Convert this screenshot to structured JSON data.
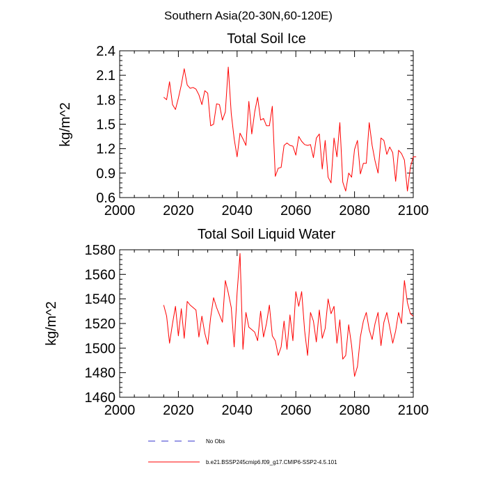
{
  "suptitle": "Southern Asia(20-30N,60-120E)",
  "chart_data": [
    {
      "type": "line",
      "title": "Total Soil Ice",
      "ylabel": "kg/m^2",
      "xlabel": "",
      "xlim": [
        2000,
        2100
      ],
      "ylim": [
        0.6,
        2.4
      ],
      "xticks": [
        2000,
        2020,
        2040,
        2060,
        2080,
        2100
      ],
      "xtick_labels": [
        "2000",
        "2020",
        "2040",
        "2060",
        "2080",
        "2100"
      ],
      "yticks": [
        0.6,
        0.9,
        1.2,
        1.5,
        1.8,
        2.1,
        2.4
      ],
      "ytick_labels": [
        "0.6",
        "0.9",
        "1.2",
        "1.5",
        "1.8",
        "2.1",
        "2.4"
      ],
      "series": [
        {
          "name": "b.e21.BSSP245cmip6.f09_g17.CMIP6-SSP2-4.5.101",
          "color": "#ff0000",
          "x_start": 2015,
          "x_step": 1,
          "values": [
            1.83,
            1.8,
            2.02,
            1.74,
            1.68,
            1.82,
            1.98,
            2.18,
            1.98,
            1.94,
            1.95,
            1.93,
            1.86,
            1.74,
            1.91,
            1.88,
            1.48,
            1.5,
            1.75,
            1.74,
            1.55,
            1.65,
            2.2,
            1.63,
            1.32,
            1.1,
            1.39,
            1.32,
            1.24,
            1.78,
            1.38,
            1.65,
            1.83,
            1.55,
            1.57,
            1.48,
            1.48,
            1.72,
            0.86,
            0.96,
            0.97,
            1.24,
            1.27,
            1.24,
            1.23,
            1.12,
            1.35,
            1.29,
            1.25,
            1.24,
            1.25,
            1.09,
            1.33,
            1.38,
            0.95,
            1.3,
            0.85,
            0.78,
            1.33,
            1.1,
            1.52,
            0.79,
            0.68,
            0.9,
            0.85,
            1.19,
            1.3,
            0.89,
            1.02,
            1.02,
            1.52,
            1.24,
            1.05,
            0.9,
            1.33,
            1.3,
            1.13,
            1.22,
            1.15,
            0.8,
            1.18,
            1.14,
            1.06,
            0.68,
            0.97,
            1.1,
            1.1
          ]
        }
      ]
    },
    {
      "type": "line",
      "title": "Total Soil Liquid Water",
      "ylabel": "kg/m^2",
      "xlabel": "",
      "xlim": [
        2000,
        2100
      ],
      "ylim": [
        1460,
        1580
      ],
      "xticks": [
        2000,
        2020,
        2040,
        2060,
        2080,
        2100
      ],
      "xtick_labels": [
        "2000",
        "2020",
        "2040",
        "2060",
        "2080",
        "2100"
      ],
      "yticks": [
        1460,
        1480,
        1500,
        1520,
        1540,
        1560,
        1580
      ],
      "ytick_labels": [
        "1460",
        "1480",
        "1500",
        "1520",
        "1540",
        "1560",
        "1580"
      ],
      "series": [
        {
          "name": "b.e21.BSSP245cmip6.f09_g17.CMIP6-SSP2-4.5.101",
          "color": "#ff0000",
          "x_start": 2015,
          "x_step": 1,
          "values": [
            1535,
            1526,
            1504,
            1520,
            1534,
            1510,
            1532,
            1508,
            1538,
            1535,
            1533,
            1531,
            1509,
            1526,
            1512,
            1503,
            1525,
            1541,
            1533,
            1527,
            1521,
            1555,
            1545,
            1533,
            1501,
            1545,
            1577,
            1499,
            1529,
            1517,
            1515,
            1513,
            1506,
            1530,
            1509,
            1520,
            1535,
            1510,
            1506,
            1494,
            1501,
            1522,
            1499,
            1527,
            1506,
            1546,
            1534,
            1546,
            1514,
            1494,
            1529,
            1522,
            1505,
            1531,
            1508,
            1516,
            1540,
            1528,
            1534,
            1504,
            1523,
            1491,
            1494,
            1519,
            1502,
            1477,
            1485,
            1509,
            1522,
            1529,
            1515,
            1507,
            1520,
            1529,
            1502,
            1521,
            1529,
            1517,
            1504,
            1514,
            1529,
            1520,
            1555,
            1537,
            1528,
            1526
          ]
        }
      ]
    }
  ],
  "legend": [
    {
      "label": "No Obs",
      "color": "#3333cc",
      "style": "dashed"
    },
    {
      "label": "b.e21.BSSP245cmip6.f09_g17.CMIP6-SSP2-4.5.101",
      "color": "#ff0000",
      "style": "solid"
    }
  ]
}
